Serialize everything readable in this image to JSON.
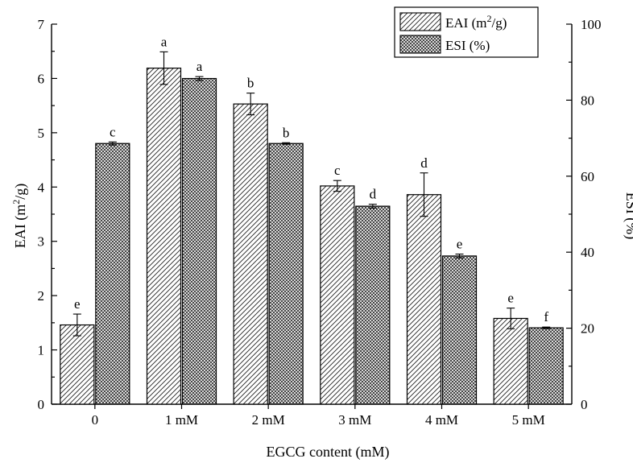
{
  "chart_data": {
    "type": "bar",
    "categories": [
      "0",
      "1 mM",
      "2 mM",
      "3 mM",
      "4 mM",
      "5 mM"
    ],
    "xlabel": "EGCG content (mM)",
    "ylabel_left_prefix": "EAI (m",
    "ylabel_left_sup": "2",
    "ylabel_left_suffix": "/g)",
    "ylabel_right": "ESI (%)",
    "ylim_left": [
      0,
      7
    ],
    "ylim_right": [
      0,
      100
    ],
    "yticks_left": [
      "0",
      "1",
      "2",
      "3",
      "4",
      "5",
      "6",
      "7"
    ],
    "yticks_right": [
      "0",
      "20",
      "40",
      "60",
      "80",
      "100"
    ],
    "series": [
      {
        "name": "EAI (m2/g)",
        "legend_prefix": "EAI (m",
        "legend_sup": "2",
        "legend_suffix": "/g)",
        "axis": "left",
        "pattern": "diagonal-hatch",
        "values": [
          1.46,
          6.19,
          5.53,
          4.02,
          3.86,
          1.58
        ],
        "errors": [
          0.2,
          0.3,
          0.2,
          0.1,
          0.4,
          0.19
        ],
        "labels": [
          "e",
          "a",
          "b",
          "c",
          "d",
          "e"
        ]
      },
      {
        "name": "ESI (%)",
        "legend_prefix": "ESI (%)",
        "legend_sup": "",
        "legend_suffix": "",
        "axis": "right",
        "pattern": "cross-hatch",
        "values": [
          68.6,
          85.7,
          68.6,
          52.1,
          39.0,
          20.1
        ],
        "errors": [
          0.4,
          0.5,
          0.2,
          0.5,
          0.5,
          0.2
        ],
        "labels": [
          "c",
          "a",
          "b",
          "d",
          "e",
          "f"
        ]
      }
    ],
    "legend_position": "top-right"
  }
}
